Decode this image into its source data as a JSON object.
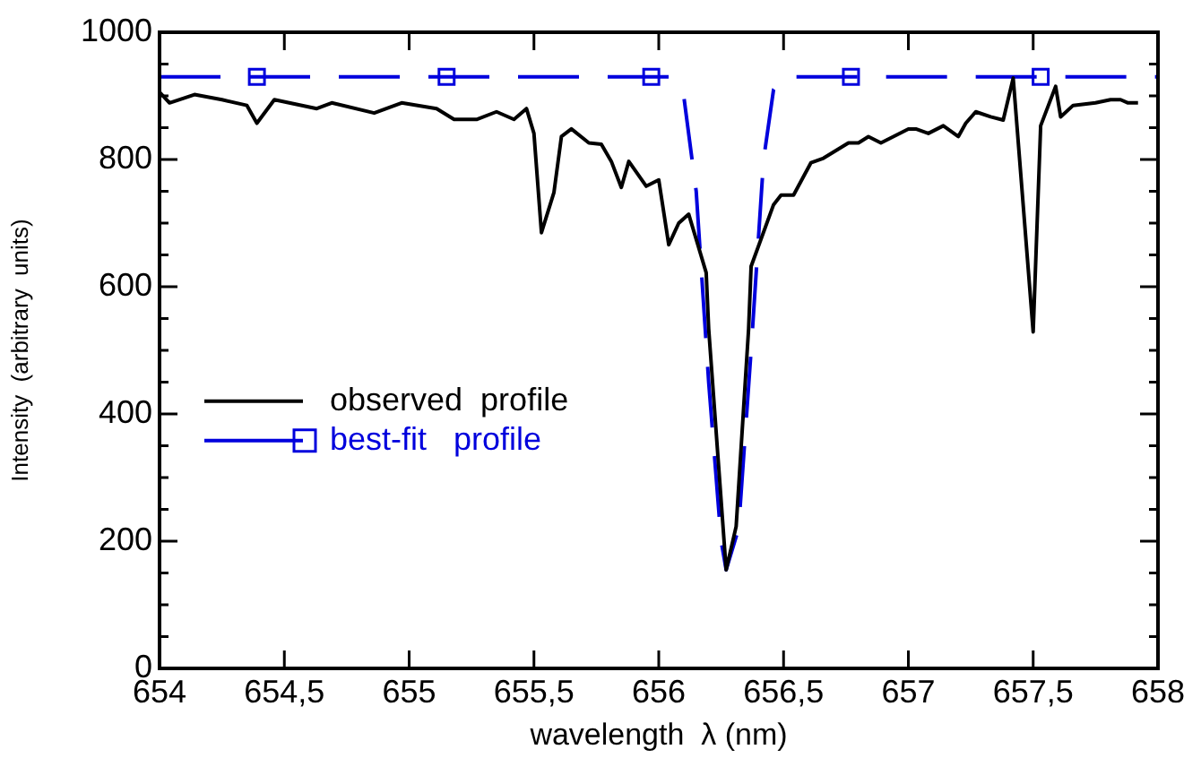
{
  "chart_data": {
    "type": "line",
    "xlabel": "wavelength  λ (nm)",
    "ylabel": "Intensity  (arbitrary  units)",
    "xlim": [
      654,
      658
    ],
    "xticks": [
      654,
      {
        "value": 654.5,
        "label": "654,5"
      },
      655,
      {
        "value": 655.5,
        "label": "655,5"
      },
      656,
      {
        "value": 656.5,
        "label": "656,5"
      },
      657,
      {
        "value": 657.5,
        "label": "657,5"
      },
      658
    ],
    "ylim": [
      0,
      1000
    ],
    "yticks": [
      0,
      {
        "value": 50,
        "label": null
      },
      {
        "value": 100,
        "label": null
      },
      {
        "value": 150,
        "label": null
      },
      200,
      {
        "value": 250,
        "label": null
      },
      {
        "value": 300,
        "label": null
      },
      {
        "value": 350,
        "label": null
      },
      400,
      {
        "value": 450,
        "label": null
      },
      {
        "value": 500,
        "label": null
      },
      {
        "value": 550,
        "label": null
      },
      600,
      {
        "value": 650,
        "label": null
      },
      {
        "value": 700,
        "label": null
      },
      {
        "value": 750,
        "label": null
      },
      800,
      {
        "value": 850,
        "label": null
      },
      {
        "value": 900,
        "label": null
      },
      {
        "value": 950,
        "label": null
      },
      1000
    ],
    "grid": false,
    "legend": "left",
    "series": [
      {
        "name": "observed  profile",
        "color": "#000000",
        "marker": "none",
        "line_style": "solid",
        "x": [
          654,
          654.04,
          654.14,
          654.25,
          654.35,
          654.39,
          654.46,
          654.63,
          654.69,
          654.86,
          654.97,
          655.11,
          655.18,
          655.27,
          655.35,
          655.42,
          655.47,
          655.5,
          655.53,
          655.58,
          655.61,
          655.65,
          655.72,
          655.77,
          655.81,
          655.85,
          655.88,
          655.95,
          656,
          656.04,
          656.08,
          656.12,
          656.19,
          656.2,
          656.27,
          656.31,
          656.36,
          656.37,
          656.46,
          656.49,
          656.54,
          656.61,
          656.66,
          656.76,
          656.8,
          656.84,
          656.89,
          657,
          657.03,
          657.08,
          657.14,
          657.2,
          657.23,
          657.27,
          657.33,
          657.38,
          657.42,
          657.5,
          657.53,
          657.59,
          657.61,
          657.66,
          657.75,
          657.81,
          657.85,
          657.88,
          657.92
        ],
        "values": [
          906,
          889,
          902,
          894,
          885,
          857,
          894,
          880,
          889,
          873,
          889,
          880,
          863,
          863,
          875,
          863,
          880,
          841,
          685,
          748,
          836,
          848,
          826,
          824,
          797,
          756,
          797,
          758,
          768,
          666,
          700,
          714,
          622,
          534,
          155,
          223,
          534,
          632,
          729,
          744,
          744,
          795,
          802,
          826,
          826,
          836,
          826,
          848,
          848,
          841,
          853,
          836,
          857,
          875,
          867,
          862,
          928,
          529,
          853,
          915,
          867,
          885,
          889,
          894,
          894,
          889,
          889
        ]
      },
      {
        "name": "best-fit   profile",
        "color": "#0000dd",
        "marker": "none",
        "line_style": "dashed",
        "x": [
          654,
          656.05,
          656.1,
          656.15,
          656.2,
          656.25,
          656.27,
          656.32,
          656.37,
          656.42,
          656.46,
          656.5,
          658
        ],
        "values": [
          930,
          930,
          900,
          750,
          450,
          200,
          155,
          220,
          500,
          800,
          910,
          930,
          930
        ]
      },
      {
        "type": "scatter",
        "color": "#0000dd",
        "marker": "square",
        "x": [
          654.39,
          655.15,
          655.97,
          656.77,
          657.53
        ],
        "values": [
          930,
          930,
          930,
          930,
          930
        ]
      }
    ]
  }
}
